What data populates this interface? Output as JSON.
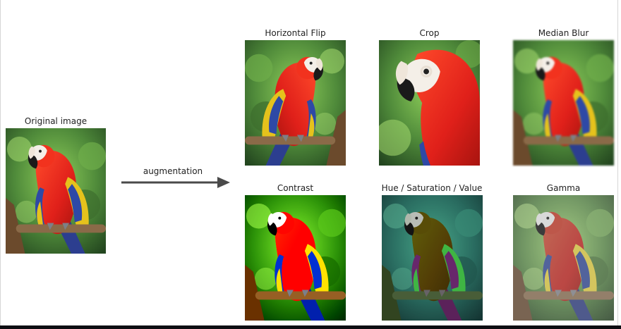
{
  "original": {
    "caption": "Original image"
  },
  "arrow": {
    "label": "augmentation"
  },
  "augmentations": [
    {
      "id": "hflip",
      "caption": "Horizontal Flip"
    },
    {
      "id": "crop",
      "caption": "Crop"
    },
    {
      "id": "median",
      "caption": "Median Blur"
    },
    {
      "id": "contrast",
      "caption": "Contrast"
    },
    {
      "id": "hsv",
      "caption": "Hue / Saturation / Value"
    },
    {
      "id": "gamma",
      "caption": "Gamma"
    }
  ],
  "colors": {
    "parrot_red": "#e8261b",
    "parrot_yellow_green": "#c6cf22",
    "foliage": "#4f8a3a",
    "branch": "#8a6a48",
    "arrow": "#4a4a4a"
  }
}
